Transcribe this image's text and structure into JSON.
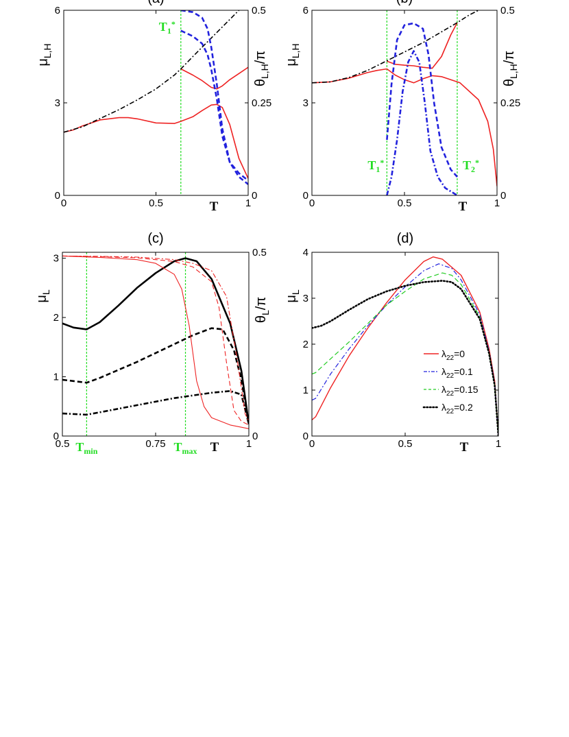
{
  "chart_data": [
    {
      "panel": "a",
      "title": "(a)",
      "type": "line",
      "xlabel": "T",
      "ylabel": "μL,H",
      "ylabel_right": "θL,H/π",
      "xlim": [
        0,
        1
      ],
      "ylim": [
        0,
        6
      ],
      "ylim_right": [
        0,
        0.5
      ],
      "xticks": [
        "0",
        "0.5",
        "1"
      ],
      "yticks": [
        "0",
        "3",
        "6"
      ],
      "yticks_right": [
        "0",
        "0.25",
        "0.5"
      ],
      "vlines": [
        {
          "x": 0.635,
          "label": "T1*"
        }
      ],
      "series": [
        {
          "axis": "left",
          "color": "#ee2222",
          "style": "solid",
          "width": 1.6,
          "x": [
            0,
            0.05,
            0.1,
            0.2,
            0.3,
            0.35,
            0.4,
            0.5,
            0.6,
            0.635
          ],
          "y": [
            2.05,
            2.12,
            2.25,
            2.45,
            2.52,
            2.52,
            2.48,
            2.35,
            2.33,
            2.4
          ]
        },
        {
          "axis": "left",
          "color": "#ee2222",
          "style": "solid",
          "width": 1.6,
          "x": [
            0.635,
            0.7,
            0.75,
            0.8,
            0.83,
            0.86,
            0.9,
            0.95,
            1.0
          ],
          "y": [
            2.4,
            2.55,
            2.75,
            2.93,
            2.95,
            2.85,
            2.3,
            1.2,
            0.55
          ]
        },
        {
          "axis": "left",
          "color": "#ee2222",
          "style": "solid",
          "width": 1.6,
          "x": [
            0.635,
            0.7,
            0.75,
            0.8,
            0.83,
            0.86,
            0.9,
            0.95,
            1.0
          ],
          "y": [
            4.1,
            3.9,
            3.72,
            3.5,
            3.45,
            3.55,
            3.75,
            3.95,
            4.15
          ]
        },
        {
          "axis": "left",
          "color": "#000000",
          "style": "dashdot",
          "width": 1.6,
          "x": [
            0,
            0.1,
            0.2,
            0.3,
            0.4,
            0.5,
            0.6,
            0.635,
            0.7,
            0.8,
            0.9,
            0.95
          ],
          "y": [
            2.05,
            2.22,
            2.5,
            2.78,
            3.1,
            3.45,
            3.9,
            4.1,
            4.5,
            5.1,
            5.7,
            6.0
          ]
        },
        {
          "axis": "right",
          "color": "#2222dd",
          "style": "dashed",
          "width": 2.6,
          "x": [
            0.635,
            0.7,
            0.75,
            0.78,
            0.8,
            0.83,
            0.86,
            0.9,
            0.95,
            1.0
          ],
          "y": [
            0.5,
            0.495,
            0.48,
            0.45,
            0.4,
            0.3,
            0.18,
            0.09,
            0.05,
            0.03
          ]
        },
        {
          "axis": "right",
          "color": "#2222dd",
          "style": "dashed",
          "width": 2.6,
          "x": [
            0.635,
            0.7,
            0.75,
            0.78,
            0.8,
            0.83,
            0.86,
            0.9,
            0.95,
            1.0
          ],
          "y": [
            0.445,
            0.43,
            0.41,
            0.38,
            0.34,
            0.26,
            0.16,
            0.09,
            0.06,
            0.04
          ]
        }
      ]
    },
    {
      "panel": "b",
      "title": "(b)",
      "type": "line",
      "xlabel": "T",
      "ylabel": "μL,H",
      "ylabel_right": "θL,H/π",
      "xlim": [
        0,
        1
      ],
      "ylim": [
        0,
        6
      ],
      "ylim_right": [
        0,
        0.5
      ],
      "xticks": [
        "0",
        "0.5",
        "1"
      ],
      "yticks": [
        "0",
        "3",
        "6"
      ],
      "yticks_right": [
        "0",
        "0.25",
        "0.5"
      ],
      "vlines": [
        {
          "x": 0.405,
          "label": "T1*"
        },
        {
          "x": 0.785,
          "label": "T2*"
        }
      ],
      "series": [
        {
          "axis": "left",
          "color": "#ee2222",
          "style": "solid",
          "width": 1.6,
          "x": [
            0,
            0.1,
            0.2,
            0.3,
            0.35,
            0.405
          ],
          "y": [
            3.65,
            3.68,
            3.8,
            3.98,
            4.05,
            4.1
          ]
        },
        {
          "axis": "left",
          "color": "#ee2222",
          "style": "solid",
          "width": 1.6,
          "x": [
            0.405,
            0.45,
            0.5,
            0.55,
            0.6,
            0.65,
            0.7,
            0.8,
            0.9,
            0.95,
            0.98,
            1.0
          ],
          "y": [
            4.1,
            3.9,
            3.75,
            3.65,
            3.78,
            3.88,
            3.85,
            3.65,
            3.1,
            2.4,
            1.5,
            0.3
          ]
        },
        {
          "axis": "left",
          "color": "#ee2222",
          "style": "solid",
          "width": 1.6,
          "x": [
            0.405,
            0.45,
            0.5,
            0.55,
            0.6,
            0.65,
            0.7,
            0.75,
            0.785
          ],
          "y": [
            4.35,
            4.25,
            4.22,
            4.2,
            4.15,
            4.12,
            4.5,
            5.2,
            5.6
          ]
        },
        {
          "axis": "left",
          "color": "#000000",
          "style": "dashdot",
          "width": 1.6,
          "x": [
            0,
            0.1,
            0.2,
            0.3,
            0.4,
            0.5,
            0.6,
            0.7,
            0.785,
            0.85,
            0.9
          ],
          "y": [
            3.65,
            3.68,
            3.82,
            4.05,
            4.35,
            4.65,
            4.95,
            5.3,
            5.6,
            5.85,
            6.0
          ]
        },
        {
          "axis": "right",
          "color": "#2222dd",
          "style": "dashed",
          "width": 2.6,
          "x": [
            0.405,
            0.43,
            0.46,
            0.5,
            0.55,
            0.6,
            0.63,
            0.66,
            0.7,
            0.75,
            0.785
          ],
          "y": [
            0.15,
            0.3,
            0.42,
            0.46,
            0.465,
            0.45,
            0.38,
            0.25,
            0.13,
            0.07,
            0.05
          ]
        },
        {
          "axis": "right",
          "color": "#2222dd",
          "style": "dashdot",
          "width": 2.6,
          "x": [
            0.405,
            0.43,
            0.46,
            0.49,
            0.52,
            0.55,
            0.58,
            0.61,
            0.64,
            0.68,
            0.72,
            0.785
          ],
          "y": [
            0.0,
            0.05,
            0.15,
            0.28,
            0.36,
            0.39,
            0.36,
            0.25,
            0.12,
            0.05,
            0.02,
            0.0
          ]
        }
      ]
    },
    {
      "panel": "c",
      "title": "(c)",
      "type": "line",
      "xlabel": "T",
      "ylabel": "μL",
      "ylabel_right": "θL/π",
      "xlim": [
        0.5,
        1
      ],
      "ylim": [
        0,
        3.1
      ],
      "ylim_right": [
        0,
        0.5
      ],
      "xticks": [
        "0.5",
        "0.75",
        "1"
      ],
      "yticks": [
        "0",
        "1",
        "2",
        "3"
      ],
      "yticks_right": [
        "0",
        "0.5"
      ],
      "vlines": [
        {
          "x": 0.565,
          "label": "Tmin"
        },
        {
          "x": 0.83,
          "label": "Tmax"
        }
      ],
      "series": [
        {
          "axis": "left",
          "color": "#000000",
          "style": "solid",
          "width": 2.6,
          "x": [
            0.5,
            0.53,
            0.565,
            0.6,
            0.65,
            0.7,
            0.75,
            0.8,
            0.83,
            0.86,
            0.9,
            0.95,
            0.98,
            1.0
          ],
          "y": [
            1.9,
            1.83,
            1.8,
            1.92,
            2.2,
            2.5,
            2.75,
            2.95,
            3.0,
            2.95,
            2.65,
            1.9,
            1.1,
            0.2
          ]
        },
        {
          "axis": "left",
          "color": "#000000",
          "style": "dashed",
          "width": 2.6,
          "x": [
            0.5,
            0.565,
            0.6,
            0.7,
            0.8,
            0.85,
            0.9,
            0.93,
            0.96,
            0.98,
            1.0
          ],
          "y": [
            0.95,
            0.9,
            0.98,
            1.25,
            1.55,
            1.7,
            1.82,
            1.8,
            1.45,
            0.95,
            0.2
          ]
        },
        {
          "axis": "left",
          "color": "#000000",
          "style": "dashdot",
          "width": 2.6,
          "x": [
            0.5,
            0.565,
            0.6,
            0.7,
            0.8,
            0.9,
            0.95,
            0.98,
            1.0
          ],
          "y": [
            0.38,
            0.36,
            0.4,
            0.52,
            0.64,
            0.73,
            0.76,
            0.7,
            0.2
          ]
        },
        {
          "axis": "right",
          "color": "#ee2222",
          "style": "solid",
          "width": 1.1,
          "x": [
            0.5,
            0.6,
            0.7,
            0.75,
            0.8,
            0.82,
            0.84,
            0.86,
            0.88,
            0.9,
            0.95,
            1.0
          ],
          "y": [
            0.49,
            0.486,
            0.48,
            0.47,
            0.44,
            0.4,
            0.3,
            0.15,
            0.08,
            0.05,
            0.03,
            0.02
          ]
        },
        {
          "axis": "right",
          "color": "#ee2222",
          "style": "dashed",
          "width": 1.1,
          "x": [
            0.5,
            0.6,
            0.7,
            0.8,
            0.85,
            0.9,
            0.92,
            0.94,
            0.96,
            0.98,
            1.0
          ],
          "y": [
            0.49,
            0.488,
            0.485,
            0.475,
            0.46,
            0.42,
            0.35,
            0.2,
            0.07,
            0.04,
            0.03
          ]
        },
        {
          "axis": "right",
          "color": "#ee2222",
          "style": "dashdot",
          "width": 1.1,
          "x": [
            0.5,
            0.6,
            0.7,
            0.8,
            0.85,
            0.9,
            0.94,
            0.97,
            0.99,
            1.0
          ],
          "y": [
            0.49,
            0.489,
            0.487,
            0.48,
            0.47,
            0.45,
            0.38,
            0.2,
            0.06,
            0.04
          ]
        }
      ]
    },
    {
      "panel": "d",
      "title": "(d)",
      "type": "line",
      "xlabel": "T",
      "ylabel": "μL",
      "xlim": [
        0,
        1
      ],
      "ylim": [
        0,
        4
      ],
      "xticks": [
        "0",
        "0.5",
        "1"
      ],
      "yticks": [
        "0",
        "1",
        "2",
        "3",
        "4"
      ],
      "legend_position": "lower-right",
      "legend": [
        "λ22=0",
        "λ22=0.1",
        "λ22=0.15",
        "λ22=0.2"
      ],
      "series": [
        {
          "name": "λ22=0",
          "axis": "left",
          "color": "#ee2222",
          "style": "solid",
          "width": 1.4,
          "x": [
            0,
            0.02,
            0.1,
            0.2,
            0.3,
            0.4,
            0.5,
            0.6,
            0.65,
            0.7,
            0.8,
            0.9,
            0.95,
            0.98,
            1.0
          ],
          "y": [
            0.35,
            0.42,
            1.05,
            1.75,
            2.35,
            2.9,
            3.4,
            3.8,
            3.9,
            3.85,
            3.5,
            2.7,
            1.9,
            1.2,
            0.0
          ]
        },
        {
          "name": "λ22=0.1",
          "axis": "left",
          "color": "#2222dd",
          "style": "dashdot",
          "width": 1.2,
          "x": [
            0,
            0.02,
            0.1,
            0.2,
            0.3,
            0.4,
            0.5,
            0.6,
            0.68,
            0.75,
            0.8,
            0.9,
            0.95,
            0.98,
            1.0
          ],
          "y": [
            0.78,
            0.82,
            1.35,
            1.9,
            2.4,
            2.85,
            3.25,
            3.6,
            3.75,
            3.65,
            3.4,
            2.65,
            1.85,
            1.15,
            0.0
          ]
        },
        {
          "name": "λ22=0.15",
          "axis": "left",
          "color": "#22cc22",
          "style": "dashed",
          "width": 1.2,
          "x": [
            0,
            0.02,
            0.1,
            0.2,
            0.3,
            0.4,
            0.5,
            0.6,
            0.7,
            0.75,
            0.8,
            0.9,
            0.95,
            0.98,
            1.0
          ],
          "y": [
            1.35,
            1.38,
            1.68,
            2.05,
            2.45,
            2.85,
            3.15,
            3.42,
            3.55,
            3.5,
            3.3,
            2.6,
            1.8,
            1.1,
            0.0
          ]
        },
        {
          "name": "λ22=0.2",
          "axis": "left",
          "color": "#000000",
          "style": "dotted",
          "width": 2.6,
          "x": [
            0,
            0.05,
            0.1,
            0.2,
            0.3,
            0.4,
            0.5,
            0.6,
            0.7,
            0.75,
            0.8,
            0.9,
            0.95,
            0.98,
            1.0
          ],
          "y": [
            2.35,
            2.4,
            2.5,
            2.75,
            2.98,
            3.15,
            3.27,
            3.35,
            3.38,
            3.35,
            3.2,
            2.55,
            1.8,
            1.1,
            0.0
          ]
        }
      ]
    }
  ]
}
